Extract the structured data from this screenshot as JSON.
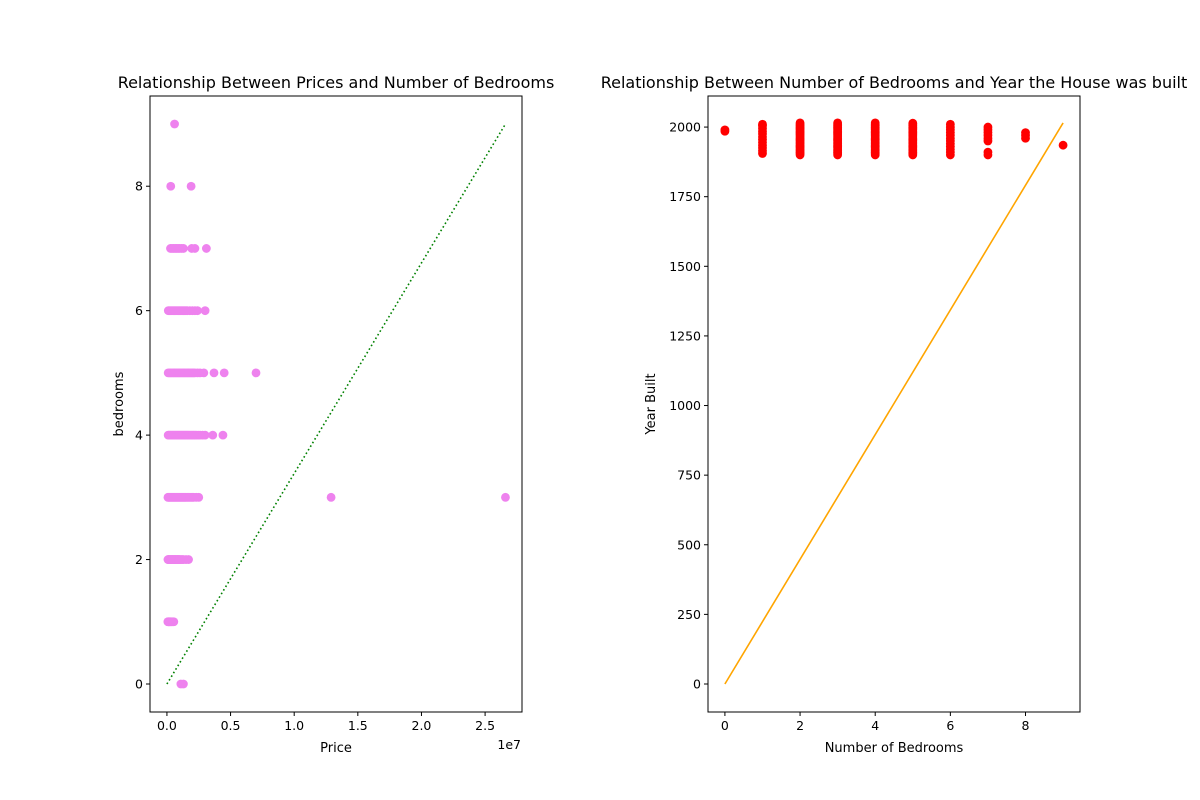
{
  "chart_data": [
    {
      "type": "scatter",
      "title": "Relationship Between Prices and Number of Bedrooms",
      "xlabel": "Price",
      "ylabel": "bedrooms",
      "x_offset_text": "1e7",
      "xlim": [
        -1330000,
        27900000
      ],
      "ylim": [
        -0.45,
        9.45
      ],
      "xticks": [
        0,
        5000000,
        10000000,
        15000000,
        20000000,
        25000000
      ],
      "xtick_labels": [
        "0.0",
        "0.5",
        "1.0",
        "1.5",
        "2.0",
        "2.5"
      ],
      "yticks": [
        0,
        2,
        4,
        6,
        8
      ],
      "ytick_labels": [
        "0",
        "2",
        "4",
        "6",
        "8"
      ],
      "grid": false,
      "point_color": "#ee82ee",
      "line_color": "#008000",
      "line_style": "dotted",
      "scatter_groups": [
        {
          "y": 0,
          "x": [
            1095000,
            1295000
          ]
        },
        {
          "y": 1,
          "x": [
            75000,
            90000,
            120000,
            150000,
            180000,
            210000,
            240000,
            280000,
            320000,
            360000,
            420000,
            480000,
            540000
          ]
        },
        {
          "y": 2,
          "x": [
            80000,
            110000,
            150000,
            200000,
            250000,
            300000,
            350000,
            400000,
            450000,
            500000,
            550000,
            600000,
            650000,
            700000,
            750000,
            800000,
            850000,
            900000,
            950000,
            1000000,
            1100000,
            1200000,
            1300000,
            1500000,
            1700000
          ]
        },
        {
          "y": 3,
          "x": [
            80000,
            150000,
            220000,
            300000,
            380000,
            460000,
            540000,
            620000,
            700000,
            780000,
            860000,
            940000,
            1020000,
            1100000,
            1180000,
            1260000,
            1340000,
            1420000,
            1500000,
            1600000,
            1700000,
            1800000,
            1900000,
            2000000,
            2100000,
            2300000,
            2500000,
            12900000,
            26600000
          ]
        },
        {
          "y": 4,
          "x": [
            100000,
            180000,
            260000,
            340000,
            420000,
            500000,
            580000,
            660000,
            740000,
            820000,
            900000,
            980000,
            1060000,
            1140000,
            1220000,
            1300000,
            1380000,
            1460000,
            1540000,
            1620000,
            1700000,
            1800000,
            1900000,
            2000000,
            2100000,
            2200000,
            2300000,
            2450000,
            2600000,
            2800000,
            3000000,
            3600000,
            4400000
          ]
        },
        {
          "y": 5,
          "x": [
            100000,
            200000,
            300000,
            400000,
            500000,
            600000,
            700000,
            800000,
            900000,
            1000000,
            1100000,
            1200000,
            1300000,
            1400000,
            1500000,
            1600000,
            1700000,
            1800000,
            1900000,
            2000000,
            2100000,
            2200000,
            2400000,
            2600000,
            2900000,
            3700000,
            4500000,
            7000000
          ]
        },
        {
          "y": 6,
          "x": [
            110000,
            200000,
            300000,
            400000,
            500000,
            600000,
            700000,
            800000,
            900000,
            1000000,
            1100000,
            1200000,
            1300000,
            1400000,
            1500000,
            1600000,
            1800000,
            2000000,
            2200000,
            2400000,
            3000000
          ]
        },
        {
          "y": 7,
          "x": [
            280000,
            400000,
            520000,
            640000,
            760000,
            880000,
            1000000,
            1150000,
            1300000,
            1950000,
            2200000,
            3100000
          ]
        },
        {
          "y": 8,
          "x": [
            300000,
            1900000
          ]
        },
        {
          "y": 9,
          "x": [
            600000
          ]
        }
      ],
      "line": {
        "x": [
          0,
          26600000
        ],
        "y": [
          0,
          9
        ]
      }
    },
    {
      "type": "scatter",
      "title": "Relationship Between Number of Bedrooms and Year the House was built",
      "xlabel": "Number of Bedrooms",
      "ylabel": "Year Built",
      "xlim": [
        -0.45,
        9.45
      ],
      "ylim": [
        -100.6,
        2111.6
      ],
      "xticks": [
        0,
        2,
        4,
        6,
        8
      ],
      "xtick_labels": [
        "0",
        "2",
        "4",
        "6",
        "8"
      ],
      "yticks": [
        0,
        250,
        500,
        750,
        1000,
        1250,
        1500,
        1750,
        2000
      ],
      "ytick_labels": [
        "0",
        "250",
        "500",
        "750",
        "1000",
        "1250",
        "1500",
        "1750",
        "2000"
      ],
      "grid": false,
      "point_color": "#ff0000",
      "line_color": "#ffa500",
      "line_style": "solid",
      "scatter_groups": [
        {
          "x": 0,
          "y": [
            1985,
            1990
          ]
        },
        {
          "x": 1,
          "y": [
            1905,
            1915,
            1925,
            1935,
            1945,
            1955,
            1965,
            1975,
            1985,
            1995,
            2005,
            2010
          ]
        },
        {
          "x": 2,
          "y": [
            1900,
            1905,
            1910,
            1915,
            1920,
            1925,
            1930,
            1935,
            1940,
            1945,
            1950,
            1955,
            1960,
            1965,
            1970,
            1975,
            1980,
            1985,
            1990,
            1995,
            2000,
            2005,
            2010,
            2015
          ]
        },
        {
          "x": 3,
          "y": [
            1900,
            1905,
            1910,
            1915,
            1920,
            1925,
            1930,
            1935,
            1940,
            1945,
            1950,
            1955,
            1960,
            1965,
            1970,
            1975,
            1980,
            1985,
            1990,
            1995,
            2000,
            2005,
            2010,
            2015
          ]
        },
        {
          "x": 4,
          "y": [
            1900,
            1905,
            1910,
            1915,
            1920,
            1925,
            1930,
            1935,
            1940,
            1945,
            1950,
            1955,
            1960,
            1965,
            1970,
            1975,
            1980,
            1985,
            1990,
            1995,
            2000,
            2005,
            2010,
            2015
          ]
        },
        {
          "x": 5,
          "y": [
            1900,
            1905,
            1910,
            1915,
            1920,
            1925,
            1930,
            1935,
            1940,
            1945,
            1950,
            1955,
            1960,
            1965,
            1970,
            1975,
            1980,
            1985,
            1990,
            1995,
            2000,
            2005,
            2010,
            2014
          ]
        },
        {
          "x": 6,
          "y": [
            1900,
            1910,
            1920,
            1930,
            1940,
            1950,
            1960,
            1970,
            1980,
            1990,
            2000,
            2010
          ]
        },
        {
          "x": 7,
          "y": [
            1900,
            1910,
            1950,
            1960,
            1970,
            1980,
            1990,
            2000
          ]
        },
        {
          "x": 8,
          "y": [
            1960,
            1970,
            1980
          ]
        },
        {
          "x": 9,
          "y": [
            1935
          ]
        }
      ],
      "line": {
        "x": [
          0,
          9
        ],
        "y": [
          0,
          2015
        ]
      }
    }
  ]
}
